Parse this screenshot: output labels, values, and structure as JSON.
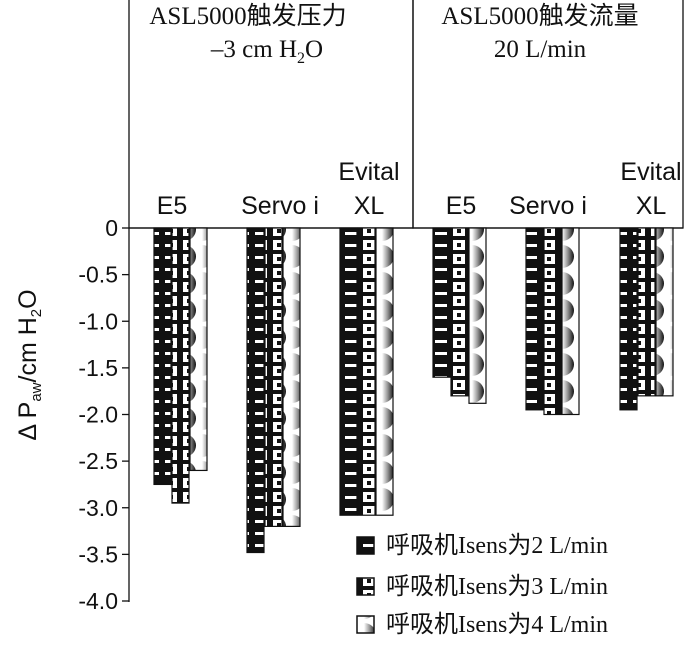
{
  "chart_data": {
    "type": "bar",
    "ylabel": "Δ Paw/cm H2O",
    "ylabel_parts": {
      "delta": "Δ P",
      "sub_aw": "aw",
      "unit": "/cm H",
      "sub_2": "2",
      "tail": "O"
    },
    "yticks": [
      "0",
      "-0.5",
      "-1.0",
      "-1.5",
      "-2.0",
      "-2.5",
      "-3.0",
      "-3.5",
      "-4.0"
    ],
    "ylim": [
      -4.0,
      0
    ],
    "panels": [
      {
        "title_line1": "ASL5000触发压力",
        "title_line2": {
          "pre": "–3 cm H",
          "sub": "2",
          "post": "O"
        },
        "categories": [
          "E5",
          "Servo i",
          "Evital XL"
        ],
        "category_labels": [
          [
            "E5"
          ],
          [
            "Servo i"
          ],
          [
            "Evital",
            "XL"
          ]
        ]
      },
      {
        "title_line1": "ASL5000触发流量",
        "title_line2": {
          "pre": "20 L/min",
          "sub": "",
          "post": ""
        },
        "categories": [
          "E5",
          "Servo i",
          "Evital XL"
        ],
        "category_labels": [
          [
            "E5"
          ],
          [
            "Servo i"
          ],
          [
            "Evital",
            "XL"
          ]
        ]
      }
    ],
    "series": [
      {
        "name": "呼吸机Isens为2 L/min",
        "pattern": "stripes",
        "values": [
          -2.75,
          -3.48,
          -3.08,
          -1.6,
          -1.95,
          -1.95
        ]
      },
      {
        "name": "呼吸机Isens为3 L/min",
        "pattern": "squares",
        "values": [
          -2.95,
          -3.2,
          -3.08,
          -1.8,
          -2.0,
          -1.8
        ]
      },
      {
        "name": "呼吸机Isens为4 L/min",
        "pattern": "halfmoon",
        "values": [
          -2.6,
          -3.2,
          -3.08,
          -1.88,
          -2.0,
          -1.8
        ]
      }
    ],
    "legend_position": "bottom-right",
    "grid": false
  }
}
